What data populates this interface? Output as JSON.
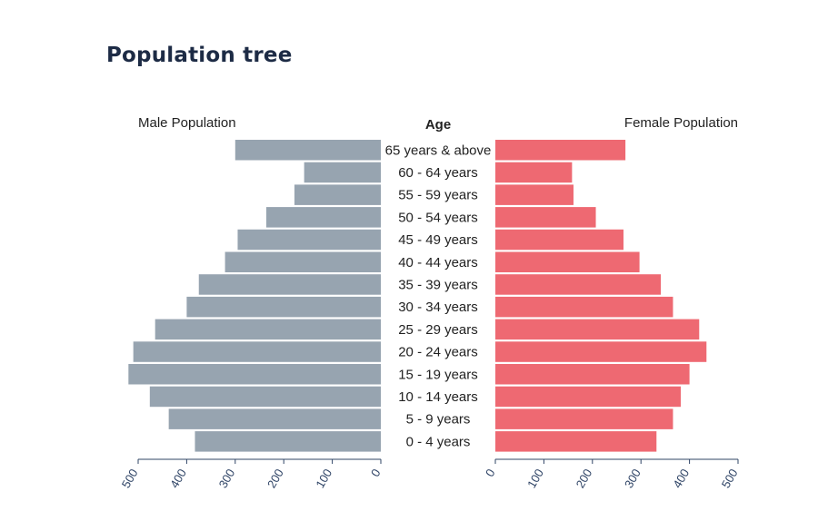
{
  "title": "Population tree",
  "chart_data": {
    "type": "bar",
    "orientation": "horizontal",
    "layout": "population-pyramid",
    "title": "Population tree",
    "center_label": "Age",
    "left_label": "Male Population",
    "right_label": "Female Population",
    "categories": [
      "65 years & above",
      "60 - 64 years",
      "55 - 59 years",
      "50 - 54 years",
      "45 - 49 years",
      "40 - 44 years",
      "35 - 39 years",
      "30 - 34 years",
      "25 - 29 years",
      "20 - 24 years",
      "15 - 19 years",
      "10 - 14 years",
      "5 - 9 years",
      "0 - 4 years"
    ],
    "series": [
      {
        "name": "Male Population",
        "side": "left",
        "color": "#97a4b0",
        "values": [
          300,
          158,
          178,
          236,
          295,
          321,
          375,
          400,
          465,
          510,
          520,
          476,
          437,
          383
        ]
      },
      {
        "name": "Female Population",
        "side": "right",
        "color": "#ee6972",
        "values": [
          268,
          158,
          161,
          207,
          264,
          297,
          341,
          366,
          420,
          435,
          400,
          382,
          366,
          332
        ]
      }
    ],
    "xlim": [
      0,
      500
    ],
    "ticks": [
      0,
      100,
      200,
      300,
      400,
      500
    ],
    "tick_labels": [
      "0",
      "100",
      "200",
      "300",
      "400",
      "500"
    ],
    "grid": false,
    "legend": "none"
  }
}
